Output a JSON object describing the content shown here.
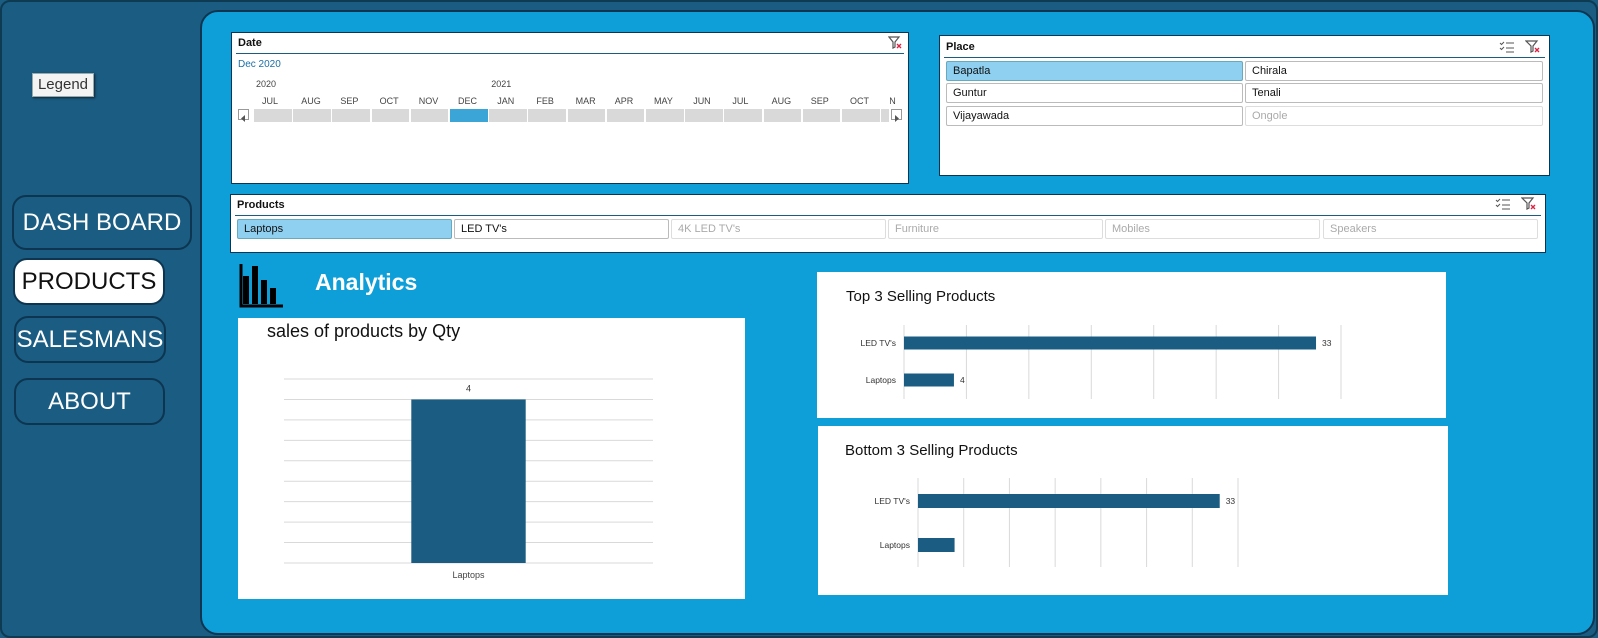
{
  "sidebar": {
    "legend_label": "Legend",
    "nav": [
      {
        "label": "DASH BOARD",
        "active": false
      },
      {
        "label": "PRODUCTS",
        "active": true
      },
      {
        "label": "SALESMANS",
        "active": false
      },
      {
        "label": "ABOUT",
        "active": false
      }
    ]
  },
  "date_slicer": {
    "title": "Date",
    "selected": "Dec 2020",
    "years": [
      "2020",
      "2021"
    ],
    "months": [
      "JUL",
      "AUG",
      "SEP",
      "OCT",
      "NOV",
      "DEC",
      "JAN",
      "FEB",
      "MAR",
      "APR",
      "MAY",
      "JUN",
      "JUL",
      "AUG",
      "SEP",
      "OCT",
      "N"
    ],
    "selected_index": 5
  },
  "place_slicer": {
    "title": "Place",
    "items": [
      {
        "label": "Bapatla",
        "state": "selected"
      },
      {
        "label": "Chirala",
        "state": "normal"
      },
      {
        "label": "Guntur",
        "state": "normal"
      },
      {
        "label": "Tenali",
        "state": "normal"
      },
      {
        "label": "Vijayawada",
        "state": "normal"
      },
      {
        "label": "Ongole",
        "state": "dim"
      }
    ]
  },
  "products_slicer": {
    "title": "Products",
    "items": [
      {
        "label": "Laptops",
        "state": "selected"
      },
      {
        "label": "LED TV's",
        "state": "normal"
      },
      {
        "label": "4K LED TV's",
        "state": "dim"
      },
      {
        "label": "Furniture",
        "state": "dim"
      },
      {
        "label": "Mobiles",
        "state": "dim"
      },
      {
        "label": "Speakers",
        "state": "dim"
      }
    ]
  },
  "analytics": {
    "title": "Analytics",
    "icon": "bar-chart-icon"
  },
  "colors": {
    "bar": "#1a5c82",
    "panel": "#0f9fd8",
    "sidebar": "#1a5c82",
    "selected": "#8fd0f0"
  },
  "chart_data": [
    {
      "type": "bar",
      "title": "sales of products by Qty",
      "categories": [
        "Laptops"
      ],
      "values": [
        4
      ],
      "ylim": [
        0,
        4.5
      ],
      "grid": true
    },
    {
      "type": "bar",
      "orientation": "horizontal",
      "title": "Top 3  Selling Products",
      "categories": [
        "LED TV's",
        "Laptops"
      ],
      "values": [
        33,
        4
      ],
      "xlim": [
        0,
        35
      ],
      "grid": true
    },
    {
      "type": "bar",
      "orientation": "horizontal",
      "title": "Bottom 3 Selling Products",
      "categories": [
        "LED TV's",
        "Laptops"
      ],
      "values": [
        33,
        4
      ],
      "data_labels": [
        "33",
        ""
      ],
      "xlim": [
        0,
        35
      ],
      "grid": true
    }
  ]
}
